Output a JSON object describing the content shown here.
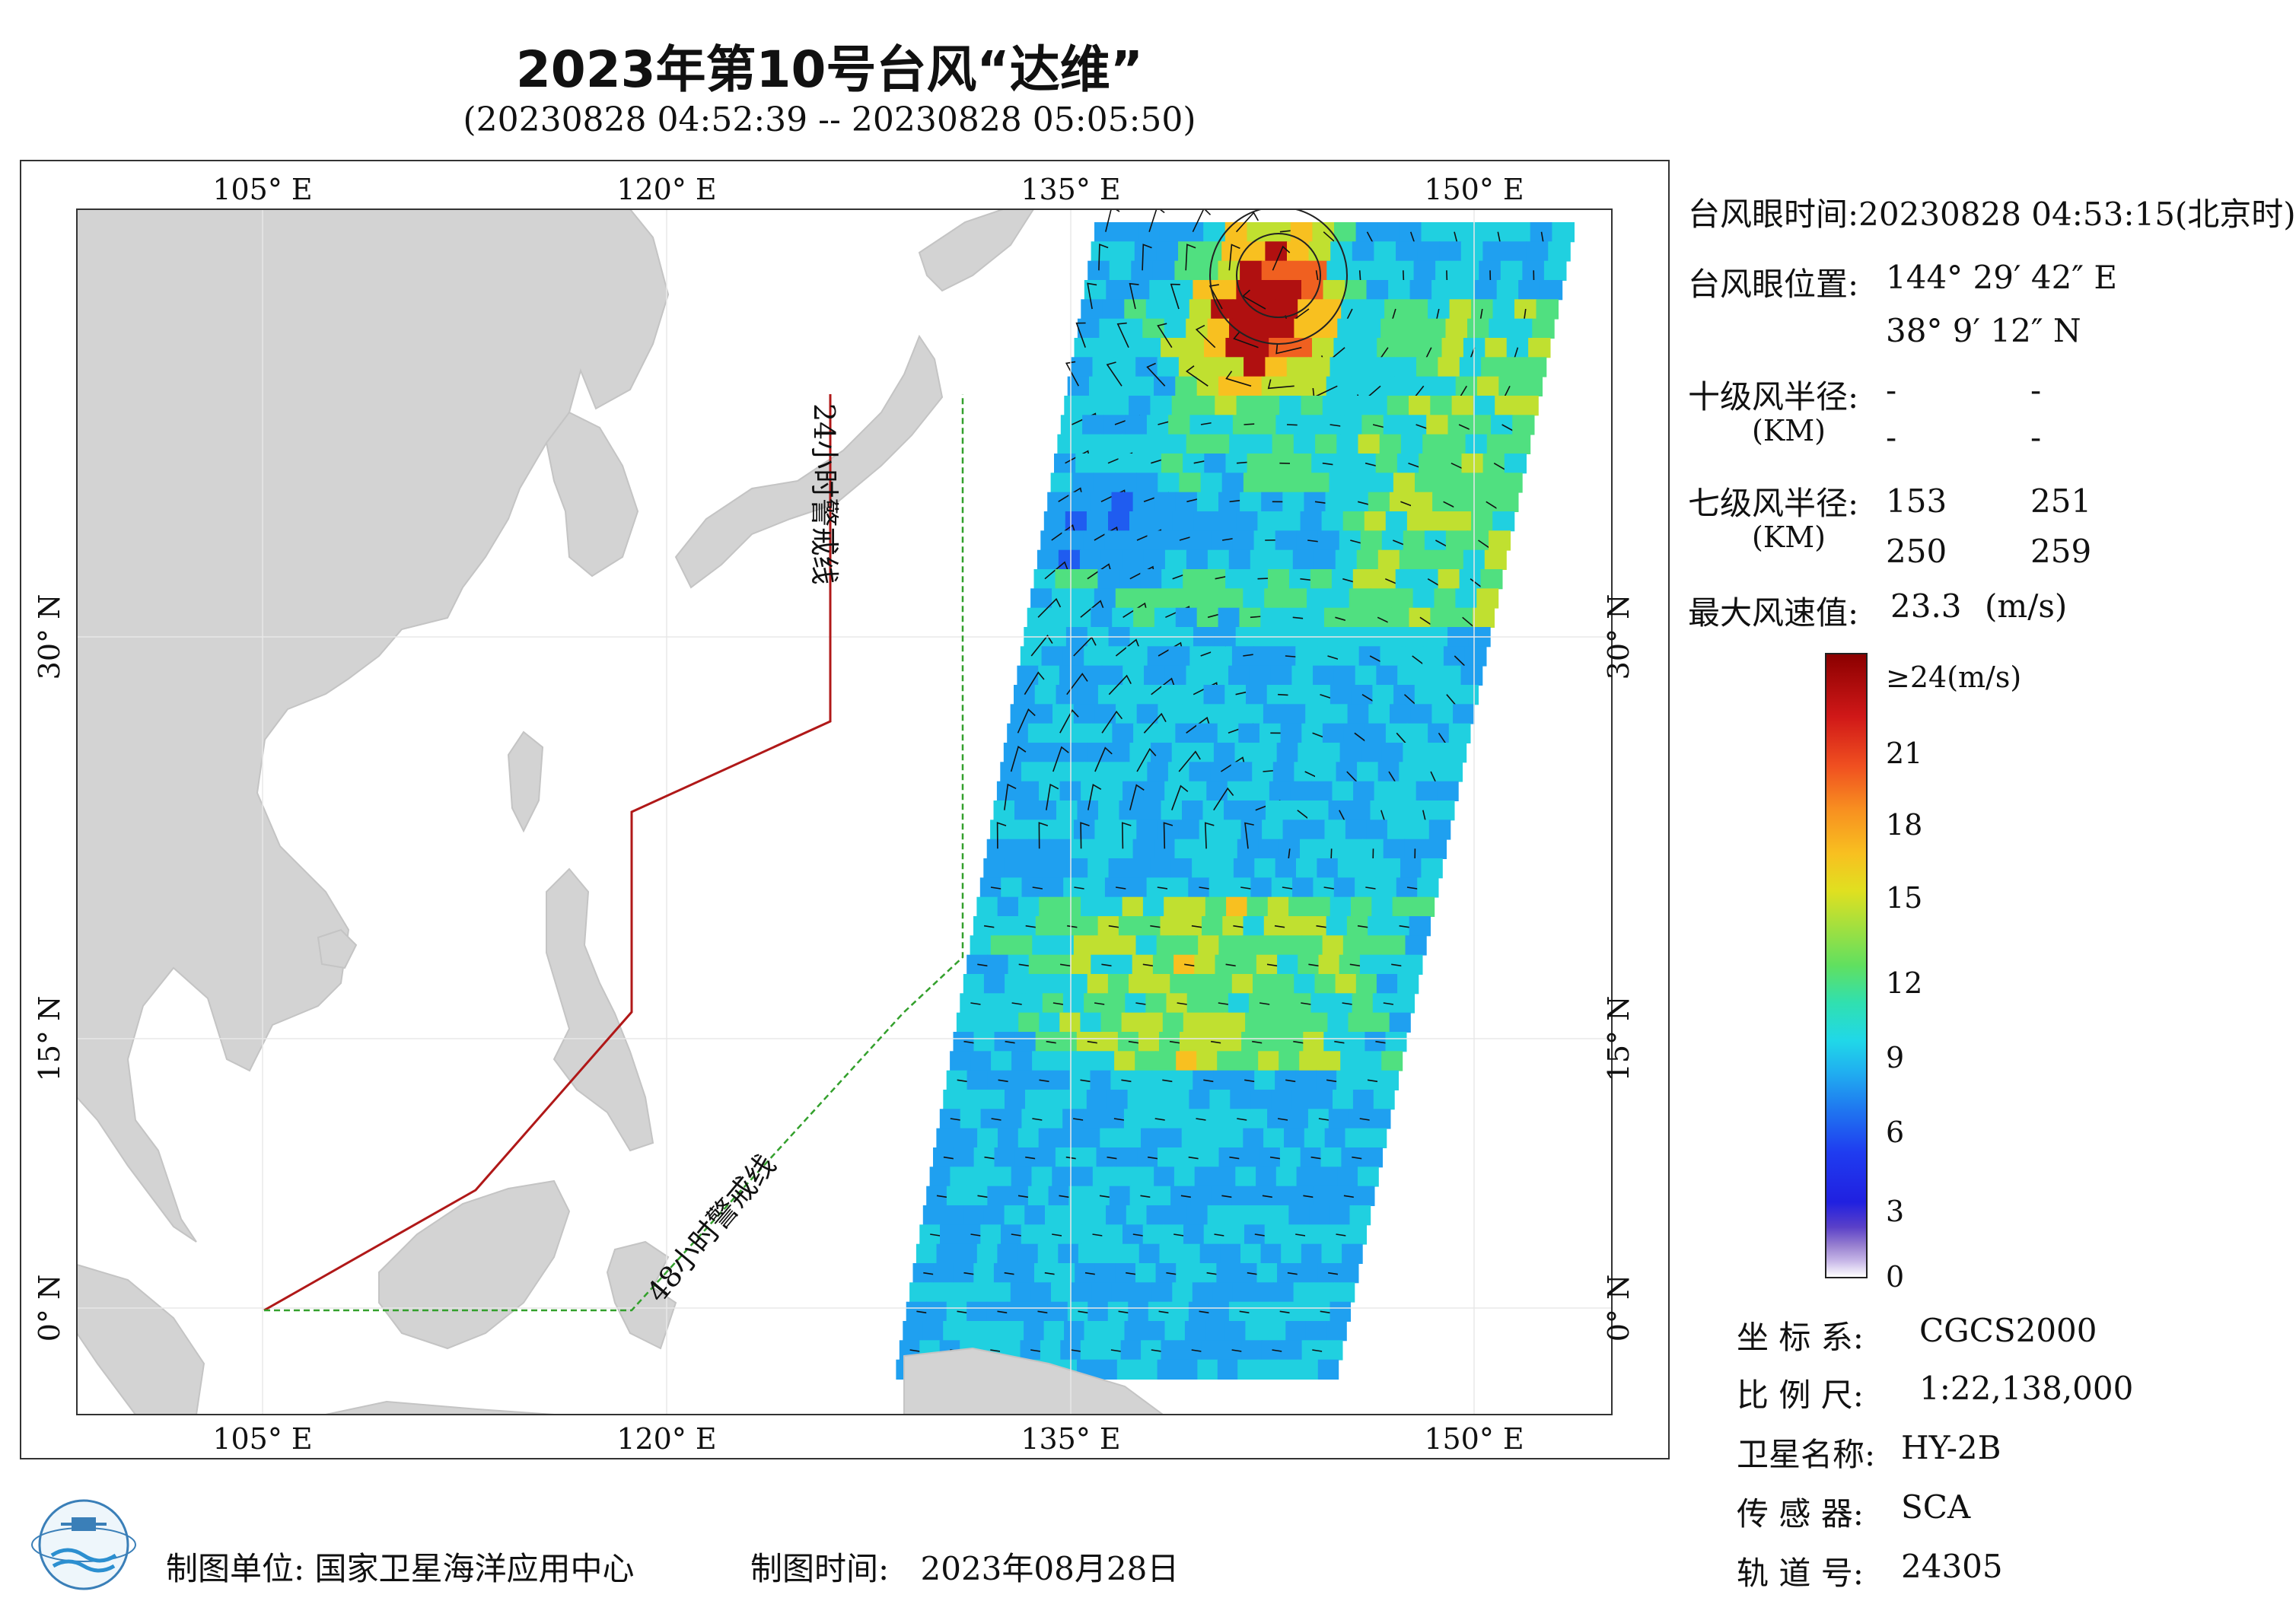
{
  "title": "2023年第10号台风“达维”",
  "time_range": "(20230828 04:52:39 -- 20230828 05:05:50)",
  "map": {
    "lon_ticks": [
      "105° E",
      "120° E",
      "135° E",
      "150° E"
    ],
    "lat_ticks": [
      "30° N",
      "15° N",
      "0° N"
    ],
    "warning_line_24h": "24小时警戒线",
    "warning_line_48h": "48小时警戒线",
    "lon_range": [
      98,
      155
    ],
    "lat_range": [
      -4,
      41
    ]
  },
  "info": {
    "eye_time_label": "台风眼时间:",
    "eye_time": "20230828 04:53:15(北京时)",
    "eye_pos_label": "台风眼位置:",
    "eye_lon": "144° 29′ 42″ E",
    "eye_lat": "38° 9′ 12″ N",
    "r10_label": "十级风半径:",
    "r10_unit": "(KM)",
    "r10_values": [
      "-",
      "-",
      "-",
      "-"
    ],
    "r7_label": "七级风半径:",
    "r7_unit": "(KM)",
    "r7_values": [
      "153",
      "251",
      "250",
      "259"
    ],
    "max_wind_label": "最大风速值:",
    "max_wind": "23.3",
    "max_wind_unit": "(m/s)"
  },
  "colorbar": {
    "top_label": "≥24(m/s)",
    "ticks": [
      "21",
      "18",
      "15",
      "12",
      "9",
      "6",
      "3",
      "0"
    ]
  },
  "meta": {
    "crs_label": "坐 标 系:",
    "crs": "CGCS2000",
    "scale_label": "比 例 尺:",
    "scale": "1:22,138,000",
    "satellite_label": "卫星名称:",
    "satellite": "HY-2B",
    "sensor_label": "传 感 器:",
    "sensor": "SCA",
    "orbit_label": "轨 道 号:",
    "orbit": "24305"
  },
  "footer": {
    "org_label": "制图单位:",
    "org": "国家卫星海洋应用中心",
    "date_label": "制图时间:",
    "date": "2023年08月28日"
  },
  "colors": {
    "land": "#d3d3d3",
    "warning_24h": "#b01818",
    "warning_48h": "#33a02c",
    "max_wind": "#8b0000"
  }
}
